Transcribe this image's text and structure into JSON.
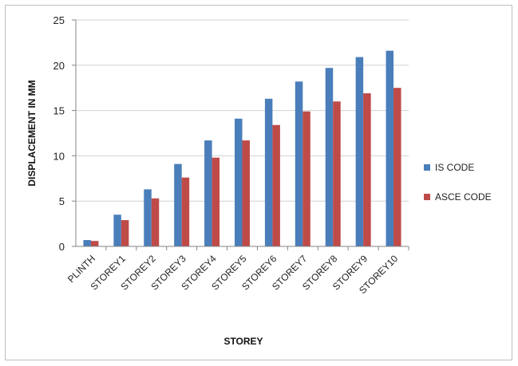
{
  "chart_data": {
    "type": "bar",
    "title": "",
    "xlabel": "STOREY",
    "ylabel": "DISPLACEMENT IN MM",
    "ylim": [
      0,
      25
    ],
    "yticks": [
      0,
      5,
      10,
      15,
      20,
      25
    ],
    "categories": [
      "PLINTH",
      "STOREY1",
      "STOREY2",
      "STOREY3",
      "STOREY4",
      "STOREY5",
      "STOREY6",
      "STOREY7",
      "STOREY8",
      "STOREY9",
      "STOREY10"
    ],
    "series": [
      {
        "name": "IS CODE",
        "color": "#4a7ebb",
        "values": [
          0.7,
          3.5,
          6.3,
          9.1,
          11.7,
          14.1,
          16.3,
          18.2,
          19.7,
          20.9,
          21.6
        ]
      },
      {
        "name": "ASCE CODE",
        "color": "#be4b48",
        "values": [
          0.6,
          2.9,
          5.3,
          7.6,
          9.8,
          11.7,
          13.4,
          14.9,
          16.0,
          16.9,
          17.5
        ]
      }
    ],
    "grid": true,
    "legend_position": "right"
  }
}
